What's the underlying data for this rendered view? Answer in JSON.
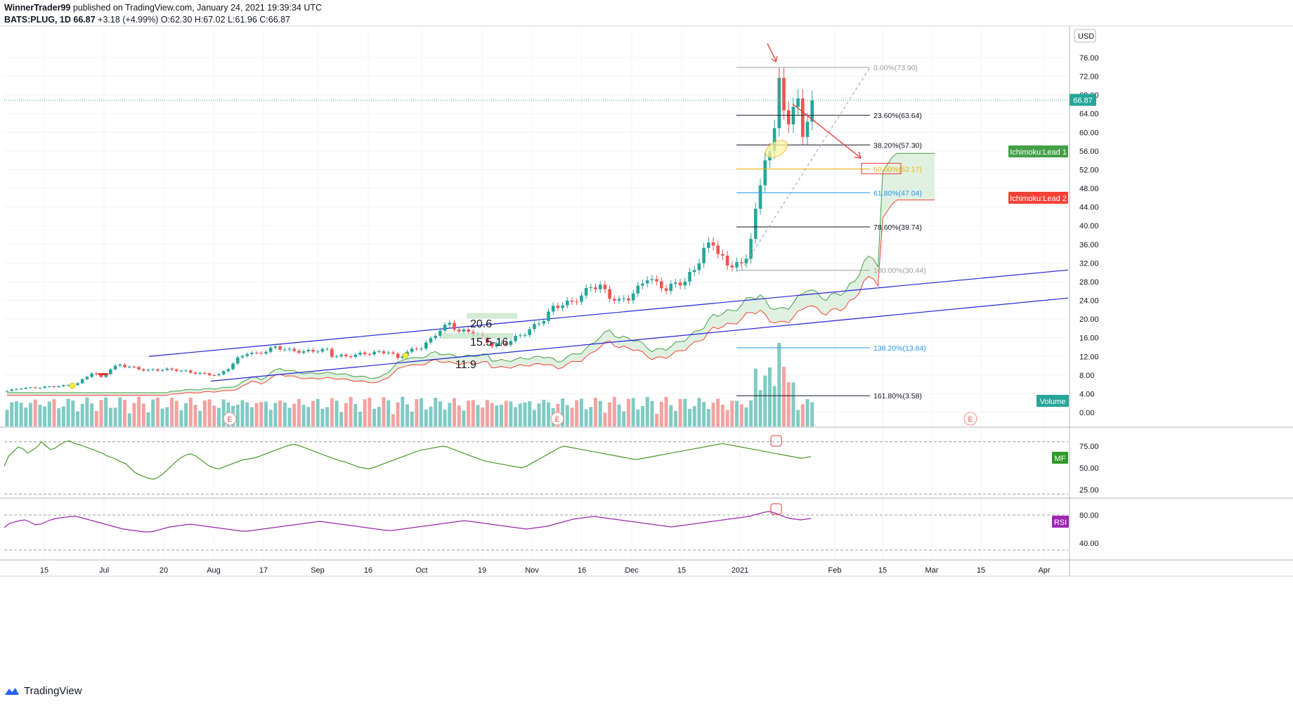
{
  "header": {
    "author": "WinnerTrader99",
    "published": "published on TradingView.com, January 24, 2021 19:39:34 UTC",
    "symbol": "BATS:PLUG, 1D",
    "last": "66.87",
    "change": "+3.18 (+4.99%)",
    "ohlc_o": "O:62.30",
    "ohlc_h": "H:67.02",
    "ohlc_l": "L:61.96",
    "ohlc_c": "C:66.87"
  },
  "footer": {
    "brand": "TradingView"
  },
  "colors": {
    "up": "#26a69a",
    "down": "#ef5350",
    "channel": "#2323d6",
    "cloud_lead1": "#43a047",
    "cloud_lead2": "#f44336",
    "cloud_fill": "#c8e6c9",
    "mf_line": "#4a9a2a",
    "rsi_line": "#9c27b0",
    "fib_50": "#f0b400",
    "fib_618": "#2196f3",
    "fib_1382": "#2196f3"
  },
  "chart_data": {
    "type": "candlestick",
    "symbol": "BATS:PLUG",
    "interval": "1D",
    "price_axis": {
      "currency": "USD",
      "ticks": [
        "76.00",
        "72.00",
        "68.00",
        "64.00",
        "60.00",
        "56.00",
        "52.00",
        "48.00",
        "44.00",
        "40.00",
        "36.00",
        "32.00",
        "28.00",
        "24.00",
        "20.00",
        "16.00",
        "12.00",
        "8.00",
        "4.00",
        "0.00"
      ],
      "last_price_label": "66.87"
    },
    "time_axis": [
      "15",
      "Jul",
      "20",
      "Aug",
      "17",
      "Sep",
      "16",
      "Oct",
      "19",
      "Nov",
      "16",
      "Dec",
      "15",
      "2021",
      "Feb",
      "15",
      "Mar",
      "15",
      "Apr"
    ],
    "price_closes_sampled": [
      [
        0,
        4.6
      ],
      [
        3,
        5.2
      ],
      [
        6,
        5.3
      ],
      [
        9,
        5.5
      ],
      [
        12,
        5.7
      ],
      [
        15,
        6.2
      ],
      [
        18,
        8.5
      ],
      [
        20,
        7.5
      ],
      [
        22,
        9.3
      ],
      [
        24,
        10.2
      ],
      [
        27,
        9.5
      ],
      [
        30,
        9.0
      ],
      [
        33,
        9.2
      ],
      [
        36,
        9.1
      ],
      [
        39,
        8.6
      ],
      [
        42,
        8.2
      ],
      [
        45,
        8.0
      ],
      [
        47,
        9.5
      ],
      [
        49,
        11.5
      ],
      [
        51,
        12.8
      ],
      [
        53,
        12.5
      ],
      [
        55,
        13.2
      ],
      [
        57,
        14.0
      ],
      [
        60,
        13.3
      ],
      [
        63,
        13.0
      ],
      [
        66,
        13.3
      ],
      [
        68,
        13.4
      ],
      [
        69,
        12.2
      ],
      [
        72,
        12.0
      ],
      [
        75,
        12.5
      ],
      [
        78,
        12.8
      ],
      [
        81,
        13.0
      ],
      [
        83,
        11.6
      ],
      [
        85,
        13.0
      ],
      [
        88,
        14.0
      ],
      [
        90,
        15.6
      ],
      [
        92,
        17.8
      ],
      [
        94,
        19.0
      ],
      [
        96,
        17.4
      ],
      [
        98,
        17.3
      ],
      [
        100,
        16.6
      ],
      [
        103,
        14.4
      ],
      [
        106,
        14.8
      ],
      [
        108,
        16.0
      ],
      [
        110,
        17.0
      ],
      [
        112,
        18.5
      ],
      [
        114,
        20.0
      ],
      [
        116,
        22.5
      ],
      [
        118,
        23.2
      ],
      [
        120,
        23.6
      ],
      [
        122,
        25.0
      ],
      [
        124,
        27.0
      ],
      [
        126,
        27.0
      ],
      [
        128,
        24.8
      ],
      [
        130,
        23.8
      ],
      [
        132,
        24.6
      ],
      [
        134,
        26.5
      ],
      [
        136,
        29.0
      ],
      [
        138,
        27.5
      ],
      [
        140,
        26.5
      ],
      [
        142,
        27.5
      ],
      [
        144,
        28.2
      ],
      [
        146,
        30.5
      ],
      [
        148,
        35.0
      ],
      [
        150,
        36.2
      ],
      [
        152,
        33.0
      ],
      [
        153,
        31.0
      ],
      [
        155,
        32.5
      ],
      [
        156,
        31.2
      ],
      [
        157,
        32.8
      ],
      [
        159,
        43.5
      ],
      [
        160,
        47.5
      ],
      [
        161,
        54.5
      ],
      [
        163,
        60.0
      ],
      [
        164,
        70.4
      ],
      [
        165,
        66.0
      ],
      [
        166,
        62.5
      ],
      [
        167,
        64.0
      ],
      [
        168,
        66.8
      ],
      [
        169,
        60.5
      ],
      [
        170,
        62.3
      ],
      [
        171,
        66.87
      ]
    ],
    "volume_axis_label": "Volume",
    "volume_spike_note": "largest volume bars near Jan 2021",
    "ichimoku": {
      "lead1_label": "Ichimoku:Lead 1",
      "lead2_label": "Ichimoku:Lead 2"
    },
    "fibonacci": [
      {
        "label": "0.00%(73.90)",
        "price": 73.9
      },
      {
        "label": "23.60%(63.64)",
        "price": 63.64
      },
      {
        "label": "38.20%(57.30)",
        "price": 57.3
      },
      {
        "label": "50.00%(52.17)",
        "price": 52.17
      },
      {
        "label": "61.80%(47.04)",
        "price": 47.04
      },
      {
        "label": "78.60%(39.74)",
        "price": 39.74
      },
      {
        "label": "100.00%(30.44)",
        "price": 30.44
      },
      {
        "label": "138.20%(13.84)",
        "price": 13.84
      },
      {
        "label": "161.80%(3.58)",
        "price": 3.58
      }
    ],
    "annotations": [
      {
        "text": "20.6",
        "price": 20.6
      },
      {
        "text": "15.5-16",
        "price": 15.8
      },
      {
        "text": "11.9",
        "price": 11.9
      }
    ],
    "earnings_marker": "E",
    "mf": {
      "label": "MF",
      "ticks": [
        "75.00",
        "50.00",
        "25.00"
      ],
      "values": [
        52,
        64,
        69,
        74,
        72,
        67,
        70,
        74,
        80,
        75,
        71,
        73,
        77,
        80,
        81,
        78,
        77,
        75,
        73,
        71,
        69,
        67,
        64,
        62,
        60,
        57,
        55,
        50,
        45,
        42,
        40,
        38,
        37,
        39,
        43,
        48,
        53,
        58,
        62,
        65,
        66,
        64,
        60,
        56,
        52,
        50,
        49,
        51,
        53,
        55,
        57,
        59,
        60,
        61,
        62,
        64,
        66,
        68,
        70,
        72,
        74,
        76,
        77,
        76,
        74,
        72,
        70,
        68,
        66,
        64,
        62,
        60,
        58,
        57,
        55,
        53,
        51,
        50,
        49,
        50,
        52,
        54,
        56,
        58,
        60,
        62,
        64,
        66,
        68,
        70,
        71,
        72,
        73,
        74,
        75,
        74,
        72,
        70,
        68,
        66,
        64,
        62,
        60,
        58,
        57,
        56,
        55,
        54,
        53,
        52,
        51,
        50,
        52,
        55,
        58,
        61,
        64,
        67,
        70,
        73,
        75,
        74,
        73,
        72,
        71,
        70,
        69,
        68,
        67,
        66,
        65,
        64,
        63,
        62,
        61,
        60,
        60,
        61,
        62,
        63,
        64,
        65,
        66,
        67,
        68,
        69,
        70,
        71,
        72,
        73,
        74,
        75,
        76,
        77,
        78,
        77,
        76,
        75,
        74,
        73,
        72,
        71,
        70,
        69,
        68,
        67,
        66,
        65,
        64,
        63,
        62,
        61,
        62,
        63
      ]
    },
    "rsi": {
      "label": "RSI",
      "ticks": [
        "80.00",
        "40.00"
      ],
      "values": [
        62,
        68,
        70,
        72,
        73,
        70,
        66,
        67,
        70,
        73,
        75,
        76,
        77,
        78,
        78,
        76,
        74,
        72,
        70,
        68,
        66,
        64,
        62,
        60,
        59,
        58,
        57,
        56,
        56,
        57,
        59,
        61,
        63,
        64,
        65,
        66,
        67,
        66,
        65,
        64,
        63,
        62,
        61,
        60,
        59,
        58,
        57,
        57,
        58,
        59,
        60,
        61,
        62,
        63,
        64,
        65,
        66,
        67,
        68,
        69,
        70,
        71,
        70,
        69,
        68,
        67,
        66,
        65,
        64,
        63,
        62,
        61,
        60,
        59,
        58,
        58,
        59,
        60,
        61,
        62,
        63,
        64,
        65,
        66,
        67,
        68,
        69,
        70,
        71,
        72,
        71,
        70,
        69,
        68,
        67,
        66,
        65,
        64,
        63,
        62,
        61,
        60,
        61,
        62,
        63,
        64,
        66,
        68,
        70,
        72,
        74,
        75,
        76,
        77,
        78,
        77,
        76,
        75,
        74,
        73,
        72,
        71,
        70,
        69,
        68,
        67,
        66,
        65,
        64,
        63,
        64,
        65,
        66,
        67,
        68,
        69,
        70,
        71,
        72,
        73,
        74,
        75,
        76,
        77,
        78,
        80,
        82,
        84,
        85,
        83,
        80,
        77,
        75,
        74,
        73,
        74,
        75
      ]
    }
  }
}
